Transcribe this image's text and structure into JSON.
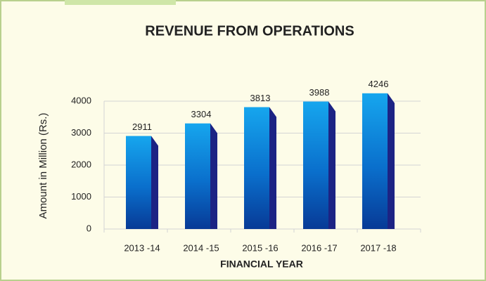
{
  "chart_data": {
    "type": "bar",
    "title": "REVENUE FROM OPERATIONS",
    "x_label": "FINANCIAL YEAR",
    "y_label": "Amount in  Million (Rs.)",
    "categories": [
      "2013 -14",
      "2014 -15",
      "2015 -16",
      "2016 -17",
      "2017 -18"
    ],
    "values": [
      2911,
      3304,
      3813,
      3988,
      4246
    ],
    "color": "#0a8ae0",
    "ylim": [
      0,
      4000
    ],
    "yticks": [
      0,
      1000,
      2000,
      3000,
      4000
    ],
    "grid": true
  }
}
